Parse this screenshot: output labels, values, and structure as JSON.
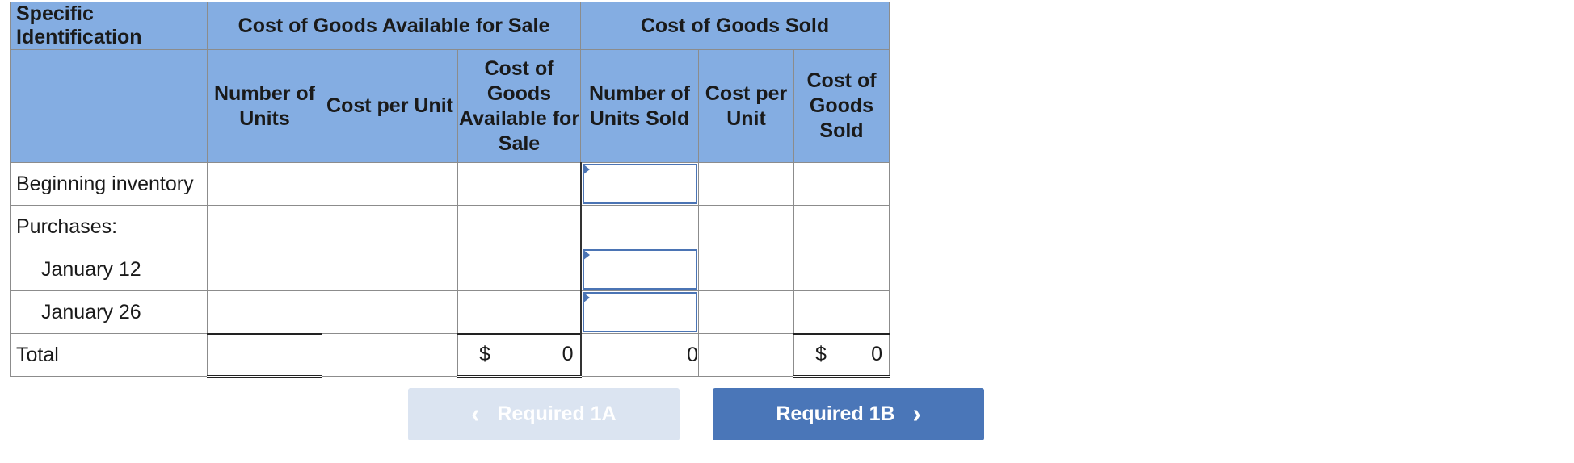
{
  "table": {
    "corner_header": "Specific Identification",
    "group_headers": {
      "available": "Cost of Goods Available for Sale",
      "sold": "Cost of Goods Sold"
    },
    "column_headers": [
      "",
      "Number of Units",
      "Cost per Unit",
      "Cost of Goods Available for Sale",
      "Number of Units Sold",
      "Cost per Unit",
      "Cost of Goods Sold"
    ],
    "rows": [
      {
        "label": "Beginning inventory"
      },
      {
        "label": "Purchases:"
      },
      {
        "label": "January 12"
      },
      {
        "label": "January 26"
      }
    ],
    "total": {
      "label": "Total",
      "available_currency": "$",
      "available_value": "0",
      "units_sold_value": "0",
      "sold_currency": "$",
      "sold_value": "0"
    }
  },
  "nav": {
    "prev_label": "Required 1A",
    "next_label": "Required 1B",
    "prev_icon": "chevron-left-icon",
    "next_icon": "chevron-right-icon"
  },
  "colors": {
    "header_bg": "#84ade2",
    "accent": "#4a76b8",
    "disabled_button": "#dbe4f1"
  }
}
